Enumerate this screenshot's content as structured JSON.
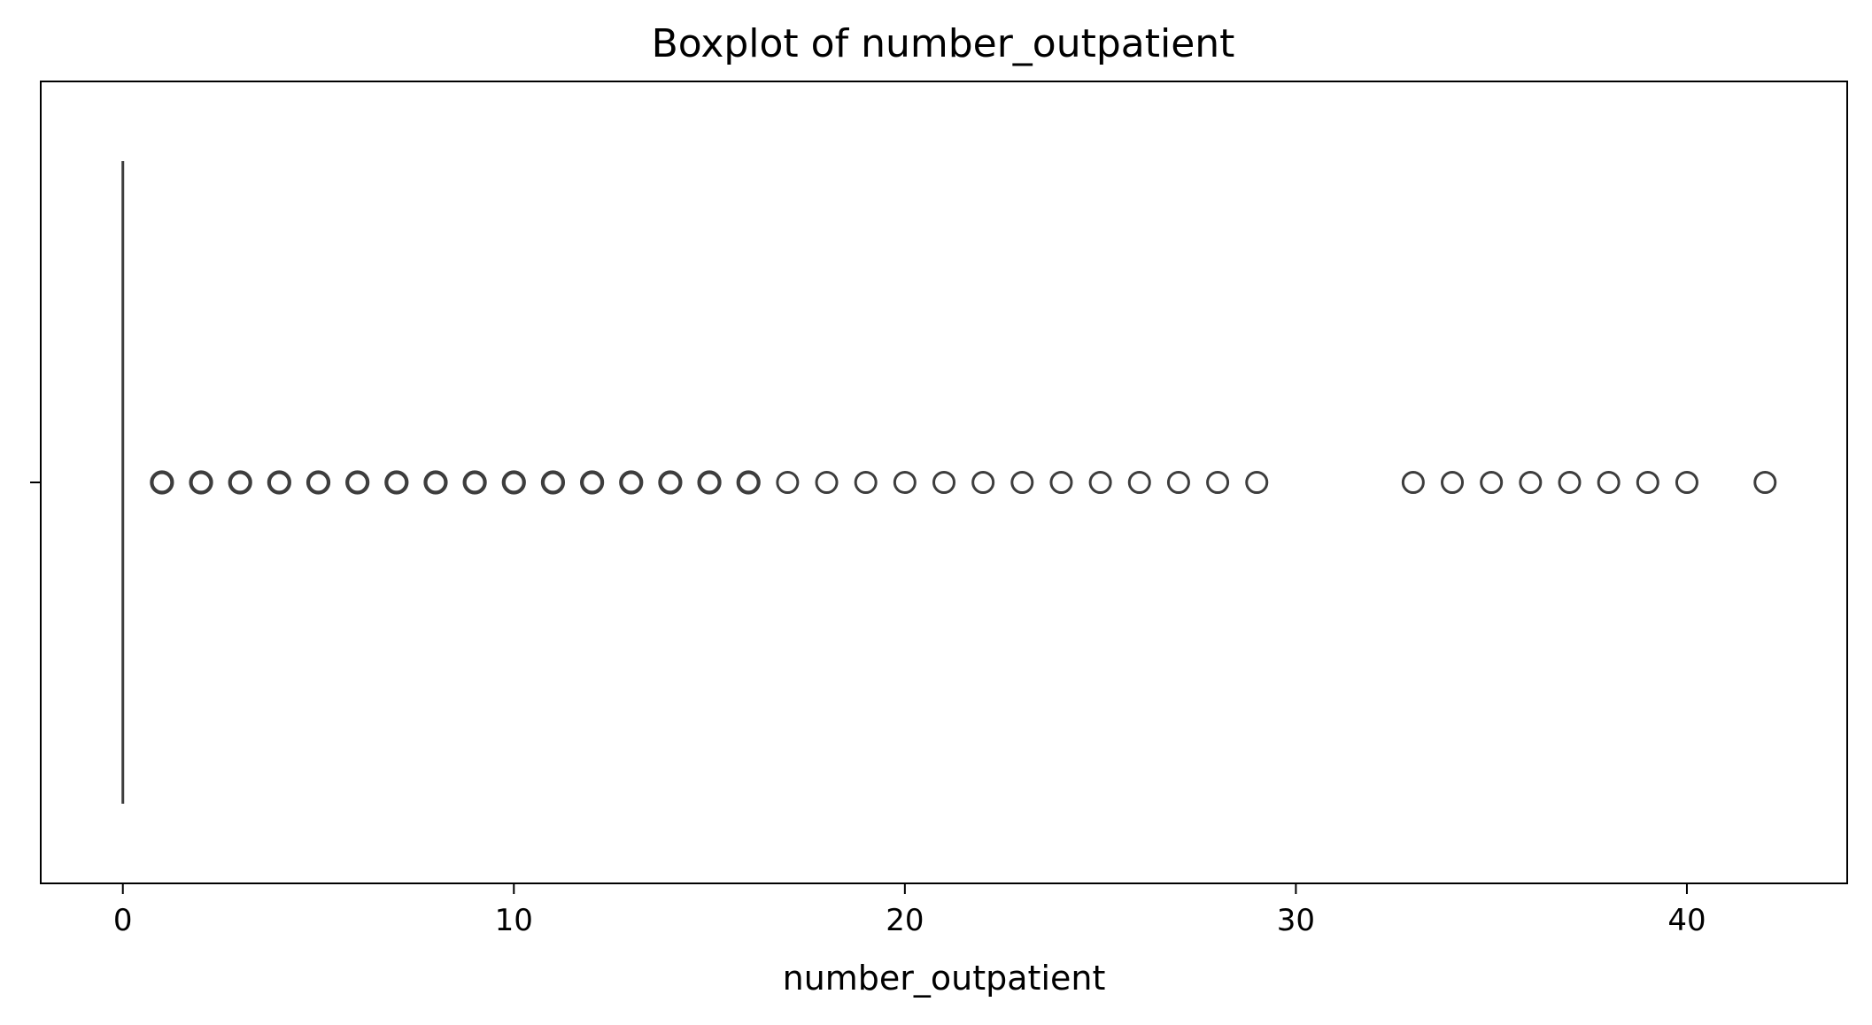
{
  "chart_data": {
    "type": "boxplot",
    "orientation": "horizontal",
    "title": "Boxplot of number_outpatient",
    "xlabel": "number_outpatient",
    "ylabel": "",
    "xlim": [
      -2.1,
      44.1
    ],
    "xticks": [
      0,
      10,
      20,
      30,
      40
    ],
    "box": {
      "q1": 0,
      "median": 0,
      "q3": 0,
      "whisker_low": 0,
      "whisker_high": 0
    },
    "outliers": [
      1,
      2,
      3,
      4,
      5,
      6,
      7,
      8,
      9,
      10,
      11,
      12,
      13,
      14,
      15,
      16,
      17,
      18,
      19,
      20,
      21,
      22,
      23,
      24,
      25,
      26,
      27,
      28,
      29,
      33,
      34,
      35,
      36,
      37,
      38,
      39,
      40,
      42
    ],
    "dense_outliers_max": 16,
    "grid": false,
    "colors": {
      "box": "#3d3d3d",
      "outlier_edge": "#3d3d3d",
      "axes": "#000000"
    }
  }
}
